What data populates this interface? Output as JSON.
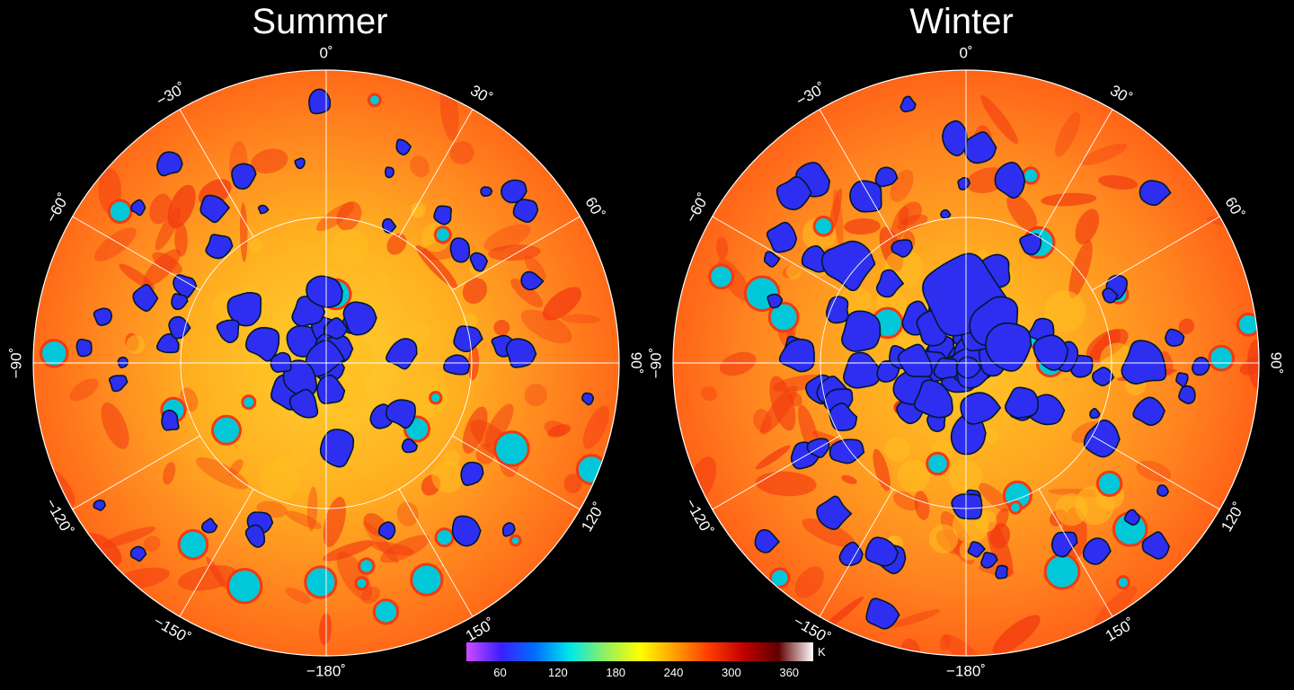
{
  "panels": [
    {
      "title": "Summer",
      "season": "summer"
    },
    {
      "title": "Winter",
      "season": "winter"
    }
  ],
  "longitude_labels": [
    {
      "deg": 0,
      "text": "0˚"
    },
    {
      "deg": 30,
      "text": "30˚"
    },
    {
      "deg": 60,
      "text": "60˚"
    },
    {
      "deg": 90,
      "text": "90˚"
    },
    {
      "deg": 120,
      "text": "120˚"
    },
    {
      "deg": 150,
      "text": "150˚"
    },
    {
      "deg": 180,
      "text": "−180˚"
    },
    {
      "deg": -150,
      "text": "−150˚"
    },
    {
      "deg": -120,
      "text": "−120˚"
    },
    {
      "deg": -90,
      "text": "−90˚"
    },
    {
      "deg": -60,
      "text": "−60˚"
    },
    {
      "deg": -30,
      "text": "−30˚"
    }
  ],
  "colorbar": {
    "unit": "K",
    "ticks": [
      "60",
      "120",
      "180",
      "240",
      "300",
      "360"
    ],
    "tick_values": [
      60,
      120,
      180,
      240,
      300,
      360
    ],
    "range": [
      25,
      385
    ],
    "colors": [
      "#d04bff",
      "#3a1fff",
      "#0070ff",
      "#00e8e8",
      "#90f060",
      "#ffff00",
      "#ffa000",
      "#ff3a00",
      "#c00000",
      "#600000",
      "#ffffff"
    ]
  },
  "map_colors": {
    "warm_base": "#ff8a20",
    "hot": "#f23a10",
    "mild": "#ffc020",
    "cold": "#2e2ef0",
    "cold_edge": "#00c8d8",
    "outline": "#001830"
  }
}
